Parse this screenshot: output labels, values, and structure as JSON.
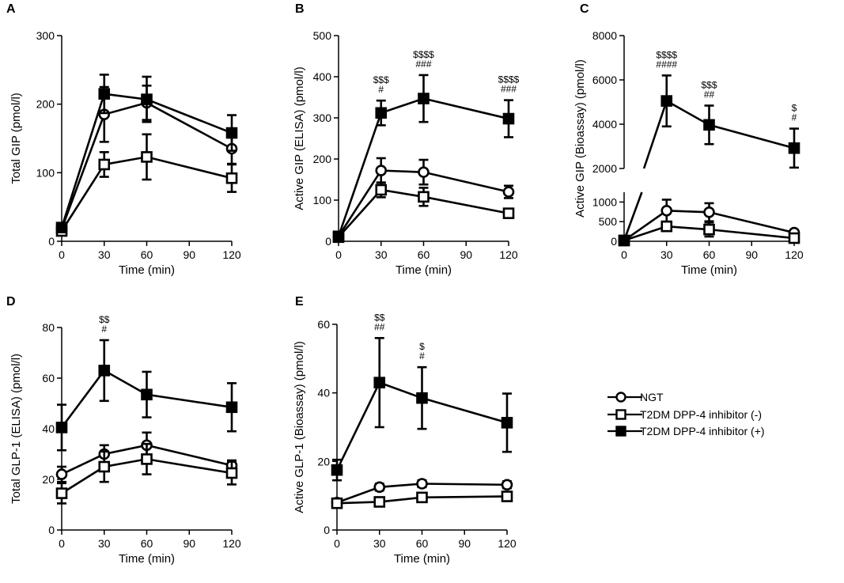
{
  "legend": {
    "items": [
      {
        "label": "NGT",
        "marker": "circle-open"
      },
      {
        "label": "T2DM DPP-4 inhibitor (-)",
        "marker": "square-open"
      },
      {
        "label": "T2DM DPP-4 inhibitor (+)",
        "marker": "square-filled"
      }
    ]
  },
  "colors": {
    "ink": "#000000",
    "background": "#ffffff"
  },
  "chart_data": [
    {
      "id": "A",
      "type": "line",
      "panel_label": "A",
      "xlabel": "Time (min)",
      "ylabel": "Total GIP (pmol/l)",
      "xlim": [
        0,
        120
      ],
      "xticks": [
        0,
        30,
        60,
        90,
        120
      ],
      "ylim": [
        0,
        300
      ],
      "yticks": [
        0,
        100,
        200,
        300
      ],
      "series": [
        {
          "name": "NGT",
          "marker": "circle-open",
          "x": [
            0,
            30,
            60,
            120
          ],
          "y": [
            18,
            185,
            202,
            135
          ],
          "err": [
            6,
            40,
            25,
            22
          ]
        },
        {
          "name": "T2DM DPP-4 inhibitor (-)",
          "marker": "square-open",
          "x": [
            0,
            30,
            60,
            120
          ],
          "y": [
            15,
            112,
            123,
            92
          ],
          "err": [
            5,
            18,
            33,
            20
          ]
        },
        {
          "name": "T2DM DPP-4 inhibitor (+)",
          "marker": "square-filled",
          "x": [
            0,
            30,
            60,
            120
          ],
          "y": [
            20,
            215,
            207,
            158
          ],
          "err": [
            5,
            28,
            33,
            26
          ]
        }
      ],
      "annotations": []
    },
    {
      "id": "B",
      "type": "line",
      "panel_label": "B",
      "xlabel": "Time (min)",
      "ylabel": "Active GIP (ELISA) (pmol/l)",
      "xlim": [
        0,
        120
      ],
      "xticks": [
        0,
        30,
        60,
        90,
        120
      ],
      "ylim": [
        0,
        500
      ],
      "yticks": [
        0,
        100,
        200,
        300,
        400,
        500
      ],
      "series": [
        {
          "name": "NGT",
          "marker": "circle-open",
          "x": [
            0,
            30,
            60,
            120
          ],
          "y": [
            12,
            172,
            168,
            120
          ],
          "err": [
            5,
            30,
            30,
            15
          ]
        },
        {
          "name": "T2DM DPP-4 inhibitor (-)",
          "marker": "square-open",
          "x": [
            0,
            30,
            60,
            120
          ],
          "y": [
            10,
            125,
            108,
            68
          ],
          "err": [
            5,
            18,
            22,
            10
          ]
        },
        {
          "name": "T2DM DPP-4 inhibitor (+)",
          "marker": "square-filled",
          "x": [
            0,
            30,
            60,
            120
          ],
          "y": [
            12,
            312,
            347,
            298
          ],
          "err": [
            5,
            30,
            57,
            45
          ]
        }
      ],
      "annotations": [
        {
          "x": 30,
          "lines": [
            "$$$",
            "#"
          ]
        },
        {
          "x": 60,
          "lines": [
            "$$$$",
            "###"
          ]
        },
        {
          "x": 120,
          "lines": [
            "$$$$",
            "###"
          ]
        }
      ]
    },
    {
      "id": "C",
      "type": "line",
      "panel_label": "C",
      "xlabel": "Time (min)",
      "ylabel": "Active GIP (Bioassay) (pmol/l)",
      "xlim": [
        0,
        120
      ],
      "xticks": [
        0,
        30,
        60,
        90,
        120
      ],
      "broken_axis": true,
      "upper_ylim": [
        2000,
        8000
      ],
      "upper_yticks": [
        2000,
        4000,
        6000,
        8000
      ],
      "lower_ylim": [
        0,
        1250
      ],
      "lower_yticks": [
        0,
        500,
        1000
      ],
      "series": [
        {
          "name": "NGT",
          "marker": "circle-open",
          "x": [
            0,
            30,
            60,
            120
          ],
          "y": [
            20,
            780,
            740,
            220
          ],
          "err": [
            10,
            280,
            230,
            60
          ]
        },
        {
          "name": "T2DM DPP-4 inhibitor (-)",
          "marker": "square-open",
          "x": [
            0,
            30,
            60,
            120
          ],
          "y": [
            20,
            380,
            300,
            80
          ],
          "err": [
            10,
            120,
            180,
            40
          ]
        },
        {
          "name": "T2DM DPP-4 inhibitor (+)",
          "marker": "square-filled",
          "x": [
            0,
            30,
            60,
            120
          ],
          "y": [
            20,
            5050,
            3970,
            2920
          ],
          "err": [
            10,
            1150,
            870,
            880
          ]
        }
      ],
      "annotations": [
        {
          "x": 30,
          "lines": [
            "$$$$",
            "####"
          ]
        },
        {
          "x": 60,
          "lines": [
            "$$$",
            "##"
          ]
        },
        {
          "x": 120,
          "lines": [
            "$",
            "#"
          ]
        }
      ]
    },
    {
      "id": "D",
      "type": "line",
      "panel_label": "D",
      "xlabel": "Time (min)",
      "ylabel": "Total GLP-1 (ELISA) (pmol/l)",
      "xlim": [
        0,
        120
      ],
      "xticks": [
        0,
        30,
        60,
        90,
        120
      ],
      "ylim": [
        0,
        80
      ],
      "yticks": [
        0,
        20,
        40,
        60,
        80
      ],
      "series": [
        {
          "name": "NGT",
          "marker": "circle-open",
          "x": [
            0,
            30,
            60,
            120
          ],
          "y": [
            22,
            30,
            33.5,
            25.5
          ],
          "err": [
            3,
            3.5,
            5,
            2
          ]
        },
        {
          "name": "T2DM DPP-4 inhibitor (-)",
          "marker": "square-open",
          "x": [
            0,
            30,
            60,
            120
          ],
          "y": [
            14.5,
            25,
            28,
            22.5
          ],
          "err": [
            4,
            6,
            6,
            4.5
          ]
        },
        {
          "name": "T2DM DPP-4 inhibitor (+)",
          "marker": "square-filled",
          "x": [
            0,
            30,
            60,
            120
          ],
          "y": [
            40.5,
            63,
            53.5,
            48.5
          ],
          "err": [
            9,
            12,
            9,
            9.5
          ]
        }
      ],
      "annotations": [
        {
          "x": 30,
          "lines": [
            "$$",
            "#"
          ]
        }
      ]
    },
    {
      "id": "E",
      "type": "line",
      "panel_label": "E",
      "xlabel": "Time (min)",
      "ylabel": "Active GLP-1 (Bioassay) (pmol/l)",
      "xlim": [
        0,
        120
      ],
      "xticks": [
        0,
        30,
        60,
        90,
        120
      ],
      "ylim": [
        0,
        60
      ],
      "yticks": [
        0,
        20,
        40,
        60
      ],
      "series": [
        {
          "name": "NGT",
          "marker": "circle-open",
          "x": [
            0,
            30,
            60,
            120
          ],
          "y": [
            8,
            12.5,
            13.5,
            13.2
          ],
          "err": [
            1,
            1,
            1,
            1
          ]
        },
        {
          "name": "T2DM DPP-4 inhibitor (-)",
          "marker": "square-open",
          "x": [
            0,
            30,
            60,
            120
          ],
          "y": [
            7.8,
            8.2,
            9.5,
            9.8
          ],
          "err": [
            1,
            1,
            1,
            1
          ]
        },
        {
          "name": "T2DM DPP-4 inhibitor (+)",
          "marker": "square-filled",
          "x": [
            0,
            30,
            60,
            120
          ],
          "y": [
            17.5,
            43,
            38.5,
            31.3
          ],
          "err": [
            3,
            13,
            9,
            8.5
          ]
        }
      ],
      "annotations": [
        {
          "x": 30,
          "lines": [
            "$$",
            "##"
          ]
        },
        {
          "x": 60,
          "lines": [
            "$",
            "#"
          ]
        }
      ]
    }
  ]
}
